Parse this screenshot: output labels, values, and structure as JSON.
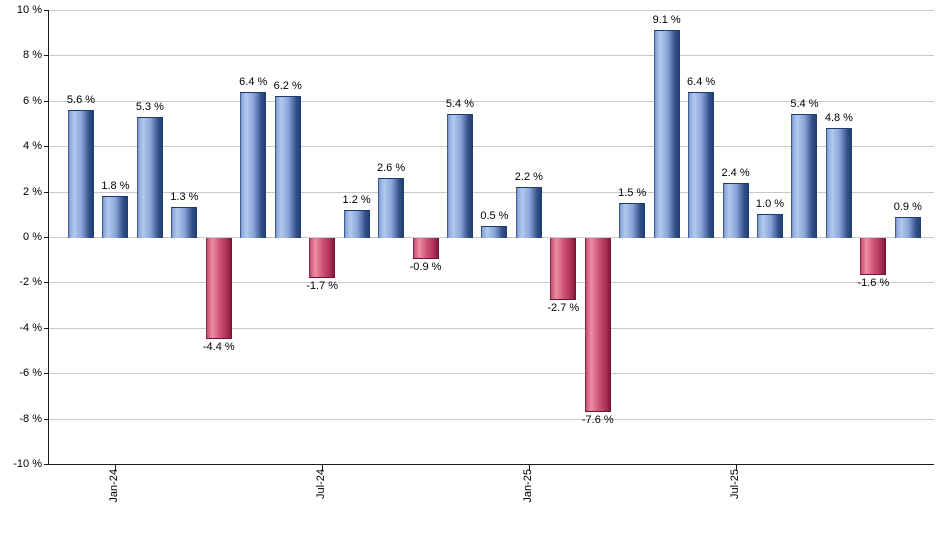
{
  "chart_data": {
    "type": "bar",
    "title": "",
    "xlabel": "",
    "ylabel": "",
    "unit": "%",
    "values": [
      5.6,
      1.8,
      5.3,
      1.3,
      -4.4,
      6.4,
      6.2,
      -1.7,
      1.2,
      2.6,
      -0.9,
      5.4,
      0.5,
      2.2,
      -2.7,
      -7.6,
      1.5,
      9.1,
      6.4,
      2.4,
      1.0,
      5.4,
      4.8,
      -1.6,
      0.9
    ],
    "bar_labels": [
      "5.6 %",
      "1.8 %",
      "5.3 %",
      "1.3 %",
      "-4.4 %",
      "6.4 %",
      "6.2 %",
      "-1.7 %",
      "1.2 %",
      "2.6 %",
      "-0.9 %",
      "5.4 %",
      "0.5 %",
      "2.2 %",
      "-2.7 %",
      "-7.6 %",
      "1.5 %",
      "9.1 %",
      "6.4 %",
      "2.4 %",
      "1.0 %",
      "5.4 %",
      "4.8 %",
      "-1.6 %",
      "0.9 %"
    ],
    "x_ticks": [
      {
        "label": "Jan-24",
        "bar_index": 1
      },
      {
        "label": "Jul-24",
        "bar_index": 7
      },
      {
        "label": "Jan-25",
        "bar_index": 13
      },
      {
        "label": "Jul-25",
        "bar_index": 19
      }
    ],
    "y_ticks": [
      {
        "value": 10,
        "label": "10 %"
      },
      {
        "value": 8,
        "label": "8 %"
      },
      {
        "value": 6,
        "label": "6 %"
      },
      {
        "value": 4,
        "label": "4 %"
      },
      {
        "value": 2,
        "label": "2 %"
      },
      {
        "value": 0,
        "label": "0 %"
      },
      {
        "value": -2,
        "label": "-2 %"
      },
      {
        "value": -4,
        "label": "-4 %"
      },
      {
        "value": -6,
        "label": "-6 %"
      },
      {
        "value": -8,
        "label": "-8 %"
      },
      {
        "value": -10,
        "label": "-10 %"
      }
    ],
    "ylim": [
      -10,
      10
    ],
    "grid": true,
    "legend": "none",
    "colors": {
      "positive_bar_edge": "#203c6e",
      "positive_bar_dark": "#31508a",
      "positive_bar_mid": "#8aa5d8",
      "positive_bar_light": "#b3c8ee",
      "negative_bar_edge": "#721332",
      "negative_bar_dark": "#a82e55",
      "negative_bar_mid": "#cf5577",
      "negative_bar_light": "#ec8da4",
      "gridline": "#c9c9c9",
      "axis": "#1a1a1a",
      "label_text": "#000000",
      "background": "#ffffff"
    }
  }
}
